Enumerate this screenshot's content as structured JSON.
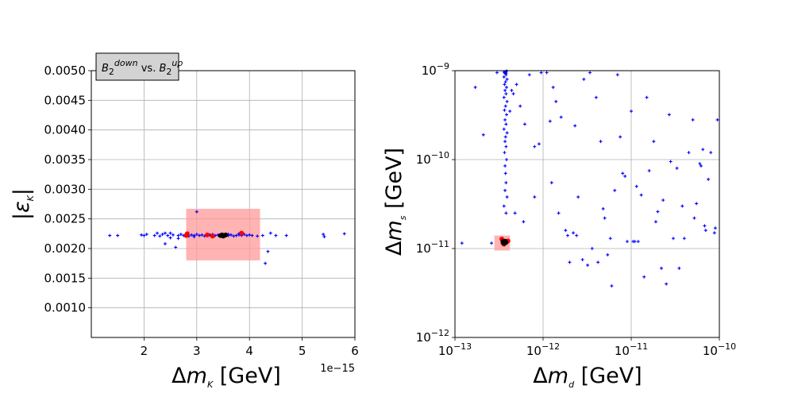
{
  "colors": {
    "sample": "#0000ff",
    "highlight": "#ff0000",
    "best": "#000000",
    "box": "#ff9999",
    "grid": "#b0b0b0",
    "legend_bg": "#d3d3d3"
  },
  "chart_data": [
    {
      "type": "scatter",
      "legend": {
        "text": "B2^down vs. B2^up",
        "placement": "top-left above axes"
      },
      "title": "",
      "xlabel": "Δm_K [GeV]",
      "ylabel": "|ε_K|",
      "x_scale": "linear",
      "y_scale": "linear",
      "xlim": [
        1.0,
        6.0
      ],
      "ylim": [
        0.0005,
        0.005
      ],
      "x_multiplier": "1e−15",
      "grid": true,
      "xticks": [
        2,
        3,
        4,
        5,
        6
      ],
      "xtick_labels": [
        "2",
        "3",
        "4",
        "5",
        "6"
      ],
      "yticks": [
        0.001,
        0.0015,
        0.002,
        0.0025,
        0.003,
        0.0035,
        0.004,
        0.0045,
        0.005
      ],
      "ytick_labels": [
        "0.0010",
        "0.0015",
        "0.0020",
        "0.0025",
        "0.0030",
        "0.0035",
        "0.0040",
        "0.0045",
        "0.0050"
      ],
      "region": {
        "x": [
          2.8,
          4.2
        ],
        "y": [
          0.0018,
          0.00267
        ]
      },
      "series": [
        {
          "name": "blue",
          "marker": "plus",
          "x": [
            1.35,
            1.5,
            1.95,
            2.0,
            2.05,
            2.2,
            2.3,
            2.35,
            2.4,
            2.45,
            2.5,
            2.55,
            2.6,
            2.65,
            2.7,
            2.75,
            2.85,
            2.9,
            2.95,
            3.0,
            3.05,
            3.1,
            3.15,
            3.2,
            3.25,
            3.3,
            3.35,
            3.4,
            3.45,
            3.5,
            3.55,
            3.6,
            3.65,
            3.7,
            3.75,
            3.8,
            3.85,
            3.9,
            3.95,
            4.0,
            4.05,
            4.25,
            4.3,
            4.4,
            4.5,
            4.7,
            5.4,
            5.42,
            5.8,
            2.5,
            2.65,
            3.0,
            2.4,
            4.15,
            4.35,
            3.3,
            3.6,
            2.25,
            2.95,
            3.8
          ],
          "y": [
            0.00222,
            0.00222,
            0.00223,
            0.00222,
            0.00224,
            0.00222,
            0.00221,
            0.00224,
            0.00208,
            0.00222,
            0.00226,
            0.00223,
            0.00202,
            0.00222,
            0.00224,
            0.00222,
            0.00221,
            0.00223,
            0.00222,
            0.00224,
            0.00222,
            0.00223,
            0.00221,
            0.00222,
            0.00223,
            0.00224,
            0.00222,
            0.00223,
            0.00221,
            0.00222,
            0.00224,
            0.00222,
            0.00223,
            0.00221,
            0.00222,
            0.00223,
            0.00222,
            0.00224,
            0.00222,
            0.00223,
            0.00222,
            0.00222,
            0.00175,
            0.00226,
            0.00222,
            0.00222,
            0.00224,
            0.0022,
            0.00225,
            0.00218,
            0.00217,
            0.00262,
            0.00226,
            0.00221,
            0.00195,
            0.00221,
            0.00224,
            0.00226,
            0.0022,
            0.00225
          ]
        },
        {
          "name": "red",
          "marker": "dot",
          "x": [
            2.8,
            2.82,
            3.2,
            3.3,
            3.85
          ],
          "y": [
            0.00222,
            0.00225,
            0.00223,
            0.00221,
            0.00226
          ]
        },
        {
          "name": "black",
          "marker": "dot",
          "x": [
            3.45,
            3.48,
            3.5,
            3.52,
            3.55
          ],
          "y": [
            0.00222,
            0.00223,
            0.00221,
            0.00222,
            0.00223
          ]
        }
      ]
    },
    {
      "type": "scatter",
      "title": "",
      "xlabel": "Δm_d [GeV]",
      "ylabel": "Δm_s [GeV]",
      "x_scale": "log",
      "y_scale": "log",
      "xlim": [
        1e-13,
        1e-10
      ],
      "ylim": [
        1e-12,
        1e-09
      ],
      "grid": true,
      "xtick_exps": [
        "−13",
        "−12",
        "−11",
        "−10"
      ],
      "ytick_exps": [
        "−12",
        "−11",
        "−10",
        "−9"
      ],
      "region": {
        "x": [
          2.8e-13,
          4.2e-13
        ],
        "y": [
          9.5e-12,
          1.4e-11
        ]
      },
      "series": [
        {
          "name": "blue",
          "marker": "plus",
          "x": [
            3.7e-13,
            3.8e-13,
            3.6e-13,
            3.9e-13,
            3.75e-13,
            3.65e-13,
            3.85e-13,
            3.7e-13,
            3.8e-13,
            3.6e-13,
            3.9e-13,
            3.75e-13,
            3.65e-13,
            3.85e-13,
            3.7e-13,
            3.8e-13,
            3.6e-13,
            3.9e-13,
            3.75e-13,
            3.7e-13,
            3.8e-13,
            3.65e-13,
            3.85e-13,
            3.7e-13,
            3.75e-13,
            3.8e-13,
            3.7e-13,
            3.9e-13,
            3.6e-13,
            3.8e-13,
            1.2e-13,
            1.7e-13,
            2.1e-13,
            2.6e-13,
            3e-13,
            4.4e-13,
            4.8e-13,
            5.5e-13,
            6.2e-13,
            7e-13,
            8e-13,
            9e-13,
            1.1e-12,
            1.3e-12,
            1.6e-12,
            1.9e-12,
            2.3e-12,
            2.8e-12,
            3.4e-12,
            4e-12,
            4.8e-12,
            5.8e-12,
            7e-12,
            8.5e-12,
            1e-11,
            1.2e-11,
            1.5e-11,
            1.8e-11,
            2.2e-11,
            2.7e-11,
            3.3e-11,
            4e-11,
            5e-11,
            6e-11,
            7.5e-11,
            9e-11,
            5e-13,
            6e-13,
            8e-13,
            1.4e-12,
            2e-12,
            2.5e-12,
            3.2e-12,
            4.5e-12,
            6e-12,
            8e-12,
            1.1e-11,
            1.4e-11,
            1.9e-11,
            2.5e-11,
            3.5e-11,
            4.5e-11,
            6.5e-11,
            8e-11,
            9.5e-11,
            1.5e-12,
            2.2e-12,
            3.6e-12,
            5e-12,
            7.5e-12,
            1.3e-11,
            2e-11,
            3e-11,
            5.5e-11,
            7e-11,
            4.2e-13,
            4.6e-13,
            9.5e-13,
            1.2e-12,
            1.8e-12,
            2.9e-12,
            4.2e-12,
            6.5e-12,
            9e-12,
            1.05e-11,
            1.6e-11,
            2.3e-11,
            3.8e-11,
            5.2e-11,
            6.8e-11,
            8.8e-11,
            1.25e-12,
            2.4e-12,
            5.4e-12,
            1.15e-11,
            2.8e-11,
            6.2e-11,
            3.8e-13,
            3.7e-13,
            3.75e-13,
            3.6e-13,
            3.85e-13,
            3.7e-13,
            3.8e-13
          ],
          "y": [
            9.5e-10,
            9e-10,
            8.5e-10,
            8e-10,
            7.5e-10,
            7e-10,
            6.5e-10,
            6e-10,
            5.5e-10,
            5e-10,
            4.5e-10,
            4e-10,
            3.6e-10,
            3.2e-10,
            2.8e-10,
            2.5e-10,
            2.2e-10,
            2e-10,
            1.8e-10,
            1.6e-10,
            1.4e-10,
            1.2e-10,
            1e-10,
            8.5e-11,
            7e-11,
            5.5e-11,
            4.5e-11,
            3.8e-11,
            3e-11,
            2.5e-11,
            1.15e-11,
            6.5e-10,
            1.9e-10,
            1.15e-11,
            9.5e-10,
            6e-10,
            2.5e-11,
            4e-10,
            2.5e-10,
            9e-10,
            3.8e-11,
            1.5e-10,
            9.5e-10,
            6.5e-10,
            3e-10,
            1.4e-11,
            2.4e-10,
            7.5e-12,
            9.5e-10,
            5e-10,
            2.8e-11,
            1.3e-11,
            9e-10,
            6.5e-11,
            3.5e-10,
            1.2e-11,
            5e-10,
            1.6e-10,
            6e-12,
            3.2e-10,
            8e-11,
            1.3e-11,
            2.8e-10,
            9e-11,
            6e-11,
            1.7e-11,
            7e-10,
            2e-11,
            1.4e-10,
            4.5e-10,
            7e-12,
            3.8e-11,
            6.5e-12,
            1.6e-10,
            3.8e-12,
            7e-11,
            1.2e-11,
            4.8e-12,
            2e-11,
            4e-12,
            6e-12,
            1.2e-10,
            1.3e-10,
            1.2e-10,
            2.8e-10,
            2.5e-11,
            1.5e-11,
            1e-11,
            2.2e-11,
            1.8e-10,
            4e-11,
            2.6e-11,
            1.3e-11,
            3.2e-11,
            1.6e-11,
            3.5e-10,
            5.5e-10,
            9.5e-10,
            2.7e-10,
            1.6e-11,
            8e-10,
            7e-12,
            4.5e-11,
            1.2e-11,
            1.2e-11,
            7.5e-11,
            3.5e-11,
            3e-11,
            2.2e-11,
            1.8e-11,
            1.5e-11,
            5.5e-11,
            1.4e-11,
            8.5e-12,
            5e-11,
            9.5e-11,
            8.5e-11,
            9.8e-10,
            9.5e-10,
            9.3e-10,
            9.6e-10,
            9.9e-10,
            9.7e-10,
            9.4e-10
          ]
        },
        {
          "name": "red",
          "marker": "dot",
          "x": [
            3.4e-13,
            3.5e-13,
            4e-13,
            3.6e-13
          ],
          "y": [
            1.28e-11,
            1.15e-11,
            1.22e-11,
            1.12e-11
          ]
        },
        {
          "name": "black",
          "marker": "dot",
          "x": [
            3.55e-13,
            3.7e-13,
            3.6e-13,
            3.8e-13,
            3.5e-13
          ],
          "y": [
            1.18e-11,
            1.21e-11,
            1.14e-11,
            1.17e-11,
            1.2e-11
          ]
        }
      ]
    }
  ]
}
